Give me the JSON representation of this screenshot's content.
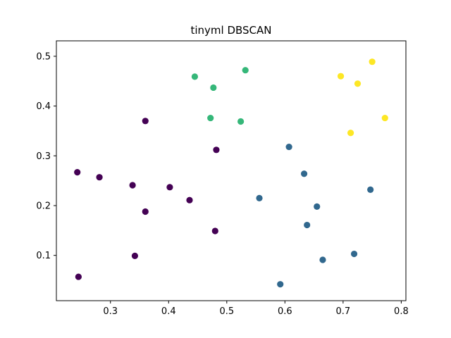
{
  "chart_data": {
    "type": "scatter",
    "title": "tinyml DBSCAN",
    "xlabel": "",
    "ylabel": "",
    "xlim": [
      0.207,
      0.808
    ],
    "ylim": [
      0.009,
      0.531
    ],
    "xticks": [
      0.3,
      0.4,
      0.5,
      0.6,
      0.7,
      0.8
    ],
    "yticks": [
      0.1,
      0.2,
      0.3,
      0.4,
      0.5
    ],
    "xtick_labels": [
      "0.3",
      "0.4",
      "0.5",
      "0.6",
      "0.7",
      "0.8"
    ],
    "ytick_labels": [
      "0.1",
      "0.2",
      "0.3",
      "0.4",
      "0.5"
    ],
    "grid": false,
    "legend": "none",
    "colors": {
      "cluster_0": "#440154",
      "cluster_1": "#31688e",
      "cluster_2": "#35b779",
      "cluster_3": "#fde725"
    },
    "series": [
      {
        "cluster": 0,
        "color": "#440154",
        "x": [
          0.243,
          0.281,
          0.338,
          0.36,
          0.402,
          0.436,
          0.482,
          0.36,
          0.48,
          0.342,
          0.245
        ],
        "y": [
          0.267,
          0.257,
          0.241,
          0.37,
          0.237,
          0.211,
          0.312,
          0.188,
          0.149,
          0.099,
          0.057
        ]
      },
      {
        "cluster": 1,
        "color": "#31688e",
        "x": [
          0.607,
          0.633,
          0.556,
          0.747,
          0.655,
          0.638,
          0.719,
          0.665,
          0.592
        ],
        "y": [
          0.318,
          0.264,
          0.215,
          0.232,
          0.198,
          0.161,
          0.103,
          0.091,
          0.042
        ]
      },
      {
        "cluster": 2,
        "color": "#35b779",
        "x": [
          0.445,
          0.532,
          0.477,
          0.472,
          0.524
        ],
        "y": [
          0.459,
          0.472,
          0.437,
          0.376,
          0.369
        ]
      },
      {
        "cluster": 3,
        "color": "#fde725",
        "x": [
          0.75,
          0.696,
          0.725,
          0.772,
          0.713
        ],
        "y": [
          0.489,
          0.46,
          0.445,
          0.376,
          0.346
        ]
      }
    ]
  }
}
